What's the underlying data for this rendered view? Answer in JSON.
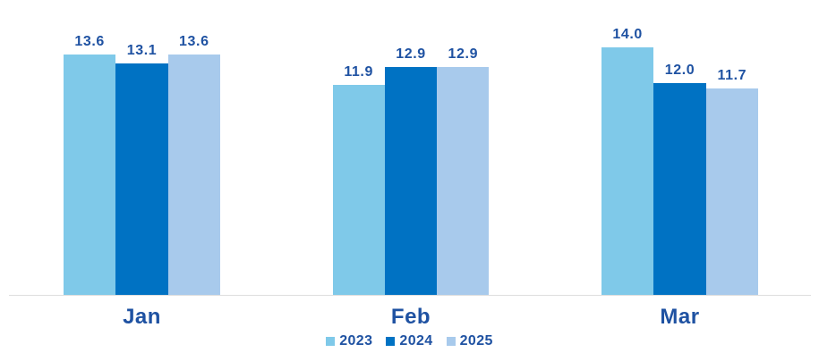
{
  "chart_data": {
    "type": "bar",
    "title": "",
    "xlabel": "",
    "ylabel": "",
    "categories": [
      "Jan",
      "Feb",
      "Mar"
    ],
    "series": [
      {
        "name": "2023",
        "color": "#7FC9E9",
        "values": [
          13.6,
          11.9,
          14.0
        ]
      },
      {
        "name": "2024",
        "color": "#0072C3",
        "values": [
          13.1,
          12.9,
          12.0
        ]
      },
      {
        "name": "2025",
        "color": "#A8CAEC",
        "values": [
          13.6,
          12.9,
          11.7
        ]
      }
    ],
    "value_labels_shown": true,
    "value_label_format": "0.1f",
    "ylim": [
      0,
      16.7
    ],
    "grid": false,
    "legend_position": "bottom",
    "label_color": "#1F52A2",
    "axis_line_color": "#DEDEDE",
    "background_color": "#FFFFFF"
  }
}
